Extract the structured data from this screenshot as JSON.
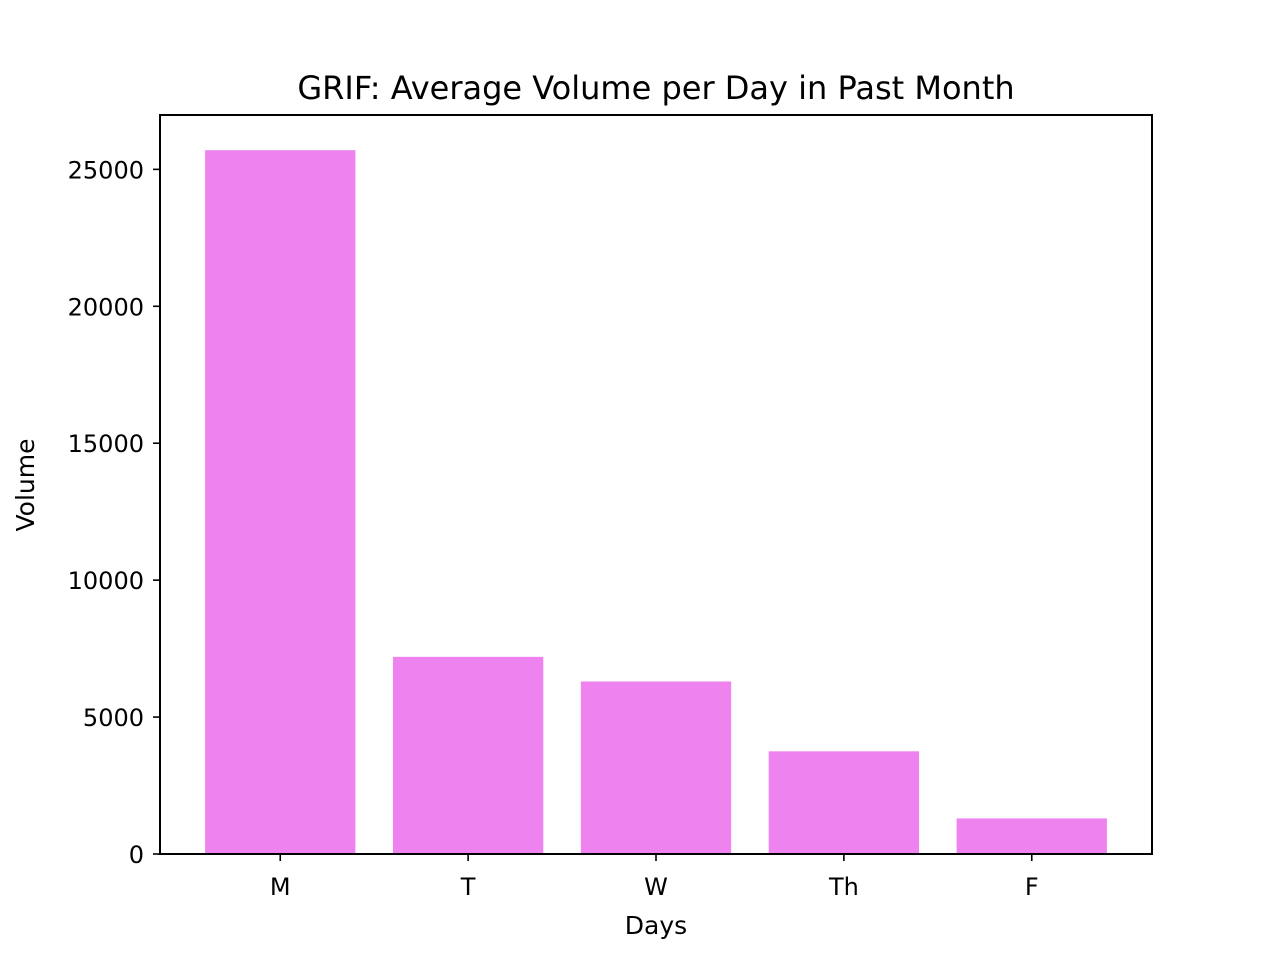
{
  "chart_data": {
    "type": "bar",
    "title": "GRIF: Average Volume per Day in Past Month",
    "xlabel": "Days",
    "ylabel": "Volume",
    "categories": [
      "M",
      "T",
      "W",
      "Th",
      "F"
    ],
    "values": [
      25700,
      7200,
      6300,
      3750,
      1300
    ],
    "ylim": [
      0,
      26985
    ],
    "yticks": [
      0,
      5000,
      10000,
      15000,
      20000,
      25000
    ],
    "bar_color": "#ee82ee",
    "grid": false,
    "legend": "none"
  }
}
